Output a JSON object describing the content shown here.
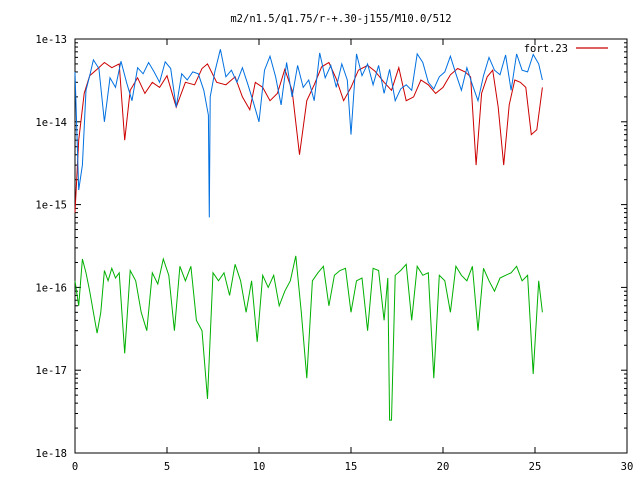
{
  "chart_data": {
    "type": "line",
    "title": "m2/n1.5/q1.75/r-+.30-j155/M10.0/512",
    "xlabel": "",
    "ylabel": "",
    "xlim": [
      0,
      30
    ],
    "ylim": [
      1e-18,
      1e-13
    ],
    "yscale": "log",
    "grid": false,
    "legend_position": "top-right",
    "x_ticks": [
      0,
      5,
      10,
      15,
      20,
      25,
      30
    ],
    "x_tick_labels": [
      "0",
      "5",
      "10",
      "15",
      "20",
      "25",
      "30"
    ],
    "y_ticks": [
      1e-18,
      1e-17,
      1e-16,
      1e-15,
      1e-14,
      1e-13
    ],
    "y_tick_labels": [
      "1e-18",
      "1e-17",
      "1e-16",
      "1e-15",
      "1e-14",
      "1e-13"
    ],
    "series": [
      {
        "name": "fort.23",
        "color": "#cc0000",
        "x": [
          0.0,
          0.2,
          0.5,
          0.8,
          1.2,
          1.6,
          2.0,
          2.4,
          2.7,
          3.0,
          3.4,
          3.8,
          4.2,
          4.6,
          5.0,
          5.5,
          6.0,
          6.5,
          6.9,
          7.2,
          7.7,
          8.2,
          8.7,
          9.1,
          9.5,
          9.8,
          10.2,
          10.6,
          11.0,
          11.4,
          11.8,
          12.2,
          12.6,
          13.0,
          13.4,
          13.8,
          14.2,
          14.6,
          15.0,
          15.4,
          15.9,
          16.3,
          16.8,
          17.2,
          17.6,
          18.0,
          18.4,
          18.8,
          19.2,
          19.6,
          20.0,
          20.4,
          20.8,
          21.2,
          21.5,
          21.8,
          22.1,
          22.4,
          22.7,
          23.0,
          23.3,
          23.6,
          23.9,
          24.2,
          24.5,
          24.8,
          25.1,
          25.4
        ],
        "values": [
          8e-16,
          6e-15,
          2.2e-14,
          3.6e-14,
          4.3e-14,
          5.2e-14,
          4.5e-14,
          5e-14,
          6e-15,
          2.4e-14,
          3.4e-14,
          2.2e-14,
          3e-14,
          2.6e-14,
          3.6e-14,
          1.5e-14,
          3e-14,
          2.8e-14,
          4.4e-14,
          5e-14,
          3e-14,
          2.8e-14,
          3.5e-14,
          2e-14,
          1.4e-14,
          3e-14,
          2.6e-14,
          1.8e-14,
          2.2e-14,
          4.3e-14,
          2.4e-14,
          4e-15,
          1.8e-14,
          2.8e-14,
          4.6e-14,
          5.2e-14,
          3.3e-14,
          1.8e-14,
          2.6e-14,
          4.2e-14,
          4.8e-14,
          4.1e-14,
          3e-14,
          2.4e-14,
          4.5e-14,
          1.8e-14,
          2e-14,
          3.2e-14,
          2.8e-14,
          2.2e-14,
          2.6e-14,
          3.7e-14,
          4.4e-14,
          4e-14,
          3.5e-14,
          3e-15,
          2.2e-14,
          3.5e-14,
          4.2e-14,
          1.5e-14,
          3e-15,
          1.6e-14,
          3.2e-14,
          3e-14,
          2.6e-14,
          7e-15,
          8e-15,
          2.6e-14
        ]
      },
      {
        "name": "",
        "color": "#0070e0",
        "x": [
          0.0,
          0.2,
          0.4,
          0.6,
          0.8,
          1.0,
          1.3,
          1.6,
          1.9,
          2.2,
          2.5,
          2.8,
          3.1,
          3.4,
          3.7,
          4.0,
          4.3,
          4.6,
          4.9,
          5.2,
          5.5,
          5.8,
          6.1,
          6.4,
          6.7,
          7.0,
          7.25,
          7.3,
          7.35,
          7.6,
          7.9,
          8.2,
          8.5,
          8.8,
          9.1,
          9.4,
          9.7,
          10.0,
          10.3,
          10.6,
          10.9,
          11.2,
          11.5,
          11.8,
          12.1,
          12.4,
          12.7,
          13.0,
          13.3,
          13.6,
          13.9,
          14.2,
          14.5,
          14.8,
          15.0,
          15.3,
          15.6,
          15.9,
          16.2,
          16.5,
          16.8,
          17.1,
          17.4,
          17.7,
          18.0,
          18.3,
          18.6,
          18.9,
          19.2,
          19.5,
          19.8,
          20.1,
          20.4,
          20.7,
          21.0,
          21.3,
          21.6,
          21.9,
          22.2,
          22.5,
          22.8,
          23.1,
          23.4,
          23.7,
          24.0,
          24.3,
          24.6,
          24.9,
          25.2,
          25.4
        ],
        "values": [
          4e-14,
          1.5e-15,
          3e-15,
          2.4e-14,
          3.6e-14,
          5.6e-14,
          4.4e-14,
          1e-14,
          3.4e-14,
          2.6e-14,
          5.4e-14,
          3e-14,
          1.8e-14,
          4.5e-14,
          3.8e-14,
          5.2e-14,
          4e-14,
          3e-14,
          5.3e-14,
          4.4e-14,
          1.5e-14,
          3.8e-14,
          3.2e-14,
          4e-14,
          3.8e-14,
          2.4e-14,
          1.2e-14,
          7e-16,
          2e-14,
          4e-14,
          7.5e-14,
          3.5e-14,
          4.2e-14,
          3e-14,
          4.5e-14,
          2.8e-14,
          1.7e-14,
          1e-14,
          4.2e-14,
          6.2e-14,
          3.5e-14,
          1.6e-14,
          5.2e-14,
          2e-14,
          4.8e-14,
          2.6e-14,
          3.2e-14,
          1.8e-14,
          6.8e-14,
          3.4e-14,
          4.8e-14,
          2.6e-14,
          5e-14,
          3.2e-14,
          7e-15,
          6.6e-14,
          3.6e-14,
          5e-14,
          2.8e-14,
          4.8e-14,
          2.2e-14,
          4.3e-14,
          1.8e-14,
          2.5e-14,
          2.8e-14,
          2.4e-14,
          6.6e-14,
          5.2e-14,
          3e-14,
          2.5e-14,
          3.5e-14,
          4e-14,
          6.2e-14,
          3.8e-14,
          2.4e-14,
          4.5e-14,
          2.8e-14,
          1.8e-14,
          3.6e-14,
          6e-14,
          4.2e-14,
          3.7e-14,
          6.4e-14,
          2.4e-14,
          6.6e-14,
          4.2e-14,
          4e-14,
          6.5e-14,
          5e-14,
          3.2e-14
        ]
      },
      {
        "name": "",
        "color": "#00b000",
        "x": [
          0.0,
          0.2,
          0.4,
          0.6,
          0.8,
          1.0,
          1.2,
          1.4,
          1.6,
          1.8,
          2.0,
          2.2,
          2.4,
          2.7,
          3.0,
          3.3,
          3.6,
          3.9,
          4.2,
          4.5,
          4.8,
          5.1,
          5.4,
          5.7,
          6.0,
          6.3,
          6.6,
          6.9,
          7.2,
          7.5,
          7.8,
          8.1,
          8.4,
          8.7,
          9.0,
          9.3,
          9.6,
          9.9,
          10.2,
          10.5,
          10.8,
          11.1,
          11.4,
          11.7,
          12.0,
          12.3,
          12.6,
          12.9,
          13.2,
          13.5,
          13.8,
          14.1,
          14.4,
          14.7,
          15.0,
          15.3,
          15.6,
          15.9,
          16.2,
          16.5,
          16.8,
          17.0,
          17.1,
          17.2,
          17.4,
          17.7,
          18.0,
          18.3,
          18.6,
          18.9,
          19.2,
          19.5,
          19.8,
          20.1,
          20.4,
          20.7,
          21.0,
          21.3,
          21.6,
          21.9,
          22.2,
          22.5,
          22.8,
          23.1,
          23.4,
          23.7,
          24.0,
          24.3,
          24.6,
          24.9,
          25.2,
          25.4
        ],
        "values": [
          1.2e-16,
          6e-17,
          2.2e-16,
          1.5e-16,
          9e-17,
          5e-17,
          2.8e-17,
          5e-17,
          1.6e-16,
          1.2e-16,
          1.7e-16,
          1.3e-16,
          1.5e-16,
          1.6e-17,
          1.6e-16,
          1.2e-16,
          5e-17,
          3e-17,
          1.5e-16,
          1.1e-16,
          2.2e-16,
          1.4e-16,
          3e-17,
          1.8e-16,
          1.2e-16,
          1.8e-16,
          4e-17,
          3e-17,
          4.5e-18,
          1.5e-16,
          1.2e-16,
          1.5e-16,
          8e-17,
          1.9e-16,
          1.2e-16,
          5e-17,
          1.2e-16,
          2.2e-17,
          1.4e-16,
          1e-16,
          1.4e-16,
          6e-17,
          9e-17,
          1.2e-16,
          2.4e-16,
          5e-17,
          8e-18,
          1.2e-16,
          1.5e-16,
          1.8e-16,
          6e-17,
          1.4e-16,
          1.6e-16,
          1.7e-16,
          5e-17,
          1.2e-16,
          1.3e-16,
          3e-17,
          1.7e-16,
          1.6e-16,
          4e-17,
          1.3e-16,
          2.5e-18,
          2.5e-18,
          1.4e-16,
          1.6e-16,
          1.9e-16,
          4e-17,
          1.8e-16,
          1.4e-16,
          1.5e-16,
          8e-18,
          1.4e-16,
          1.2e-16,
          5e-17,
          1.8e-16,
          1.4e-16,
          1.2e-16,
          1.8e-16,
          3e-17,
          1.7e-16,
          1.2e-16,
          9e-17,
          1.3e-16,
          1.4e-16,
          1.5e-16,
          1.8e-16,
          1.2e-16,
          1.4e-16,
          9e-18,
          1.2e-16,
          5e-17
        ]
      }
    ]
  }
}
